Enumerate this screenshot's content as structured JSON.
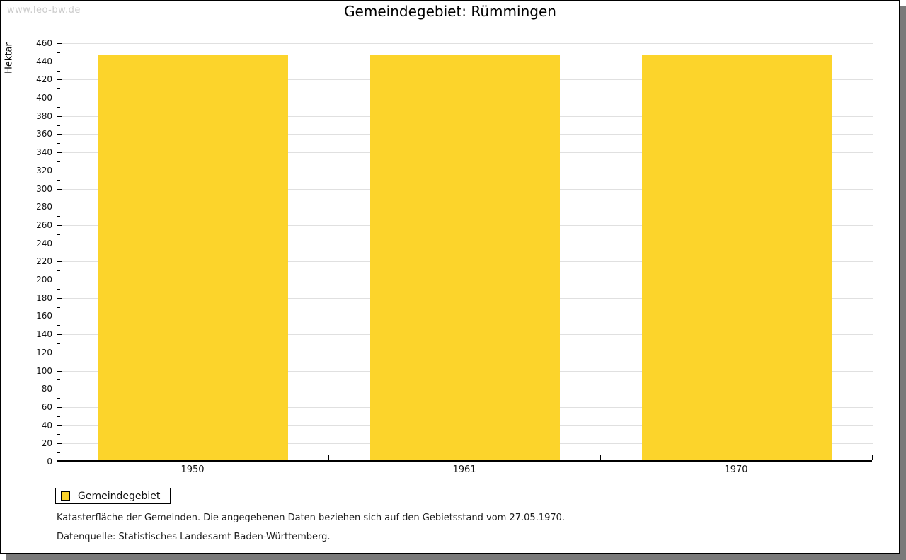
{
  "watermark": "www.leo-bw.de",
  "chart_data": {
    "type": "bar",
    "title": "Gemeindegebiet: Rümmingen",
    "categories": [
      "1950",
      "1961",
      "1970"
    ],
    "series": [
      {
        "name": "Gemeindegebiet",
        "values": [
          446,
          446,
          446
        ]
      }
    ],
    "xlabel": "",
    "ylabel": "Hektar",
    "ylim": [
      0,
      460
    ],
    "ytick_step": 20,
    "yminor_step": 10,
    "grid": true,
    "legend_position": "bottom-left",
    "colors": {
      "bar": "#FCD42B",
      "grid": "#E0E0E0",
      "axis": "#000000",
      "watermark": "#CCCCCC"
    }
  },
  "legend": {
    "label": "Gemeindegebiet"
  },
  "footnotes": [
    "Katasterfläche der Gemeinden. Die angegebenen Daten beziehen sich auf den Gebietsstand vom 27.05.1970.",
    "Datenquelle: Statistisches Landesamt Baden-Württemberg."
  ]
}
